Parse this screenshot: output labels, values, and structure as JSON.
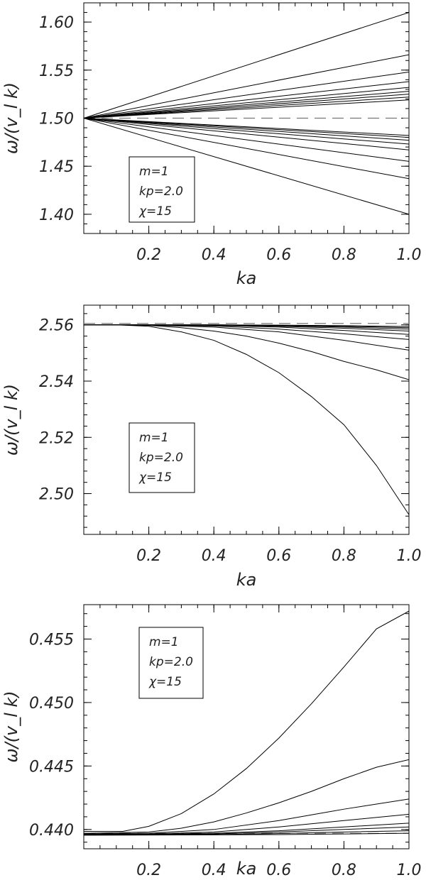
{
  "chart_data": [
    {
      "type": "line",
      "xlabel": "ka",
      "ylabel": "ω/(v_l k)",
      "xlim": [
        0.0,
        1.0
      ],
      "ylim": [
        1.38,
        1.62
      ],
      "x_ticks": [
        0.2,
        0.4,
        0.6,
        0.8,
        1.0
      ],
      "x_tick_labels": [
        "0.2",
        "0.4",
        "0.6",
        "0.8",
        "1.0"
      ],
      "y_ticks": [
        1.4,
        1.45,
        1.5,
        1.55,
        1.6
      ],
      "y_tick_labels": [
        "1.40",
        "1.45",
        "1.50",
        "1.55",
        "1.60"
      ],
      "grid": false,
      "legend_placement": "lower-left",
      "annotation_lines": [
        "m=1",
        "kp=2.0",
        "χ=15"
      ],
      "reference_line": {
        "y": 1.5,
        "style": "dashed"
      },
      "series": [
        {
          "x": [
            0.0,
            1.0
          ],
          "y": [
            1.5,
            1.61
          ]
        },
        {
          "x": [
            0.0,
            1.0
          ],
          "y": [
            1.5,
            1.566
          ]
        },
        {
          "x": [
            0.0,
            1.0
          ],
          "y": [
            1.5,
            1.548
          ]
        },
        {
          "x": [
            0.0,
            1.0
          ],
          "y": [
            1.5,
            1.538
          ]
        },
        {
          "x": [
            0.0,
            1.0
          ],
          "y": [
            1.5,
            1.532
          ]
        },
        {
          "x": [
            0.0,
            1.0
          ],
          "y": [
            1.5,
            1.528
          ]
        },
        {
          "x": [
            0.0,
            1.0
          ],
          "y": [
            1.5,
            1.525
          ]
        },
        {
          "x": [
            0.0,
            1.0
          ],
          "y": [
            1.5,
            1.522
          ]
        },
        {
          "x": [
            0.0,
            1.0
          ],
          "y": [
            1.5,
            1.519
          ]
        },
        {
          "x": [
            0.0,
            1.0
          ],
          "y": [
            1.5,
            1.482
          ]
        },
        {
          "x": [
            0.0,
            1.0
          ],
          "y": [
            1.5,
            1.48
          ]
        },
        {
          "x": [
            0.0,
            1.0
          ],
          "y": [
            1.5,
            1.477
          ]
        },
        {
          "x": [
            0.0,
            1.0
          ],
          "y": [
            1.5,
            1.473
          ]
        },
        {
          "x": [
            0.0,
            1.0
          ],
          "y": [
            1.5,
            1.467
          ]
        },
        {
          "x": [
            0.0,
            1.0
          ],
          "y": [
            1.5,
            1.455
          ]
        },
        {
          "x": [
            0.0,
            1.0
          ],
          "y": [
            1.5,
            1.437
          ]
        },
        {
          "x": [
            0.0,
            1.0
          ],
          "y": [
            1.5,
            1.4
          ]
        }
      ]
    },
    {
      "type": "line",
      "xlabel": "ka",
      "ylabel": "ω/(v_l k)",
      "xlim": [
        0.0,
        1.0
      ],
      "ylim": [
        2.4855,
        2.567
      ],
      "x_ticks": [
        0.2,
        0.4,
        0.6,
        0.8,
        1.0
      ],
      "x_tick_labels": [
        "0.2",
        "0.4",
        "0.6",
        "0.8",
        "1.0"
      ],
      "y_ticks": [
        2.5,
        2.52,
        2.54,
        2.56
      ],
      "y_tick_labels": [
        "2.50",
        "2.52",
        "2.54",
        "2.56"
      ],
      "grid": false,
      "legend_placement": "lower-left",
      "annotation_lines": [
        "m=1",
        "kp=2.0",
        "χ=15"
      ],
      "reference_line": {
        "y": 2.5605,
        "style": "dashed"
      },
      "series": [
        {
          "x": [
            0.0,
            0.1,
            0.2,
            0.3,
            0.4,
            0.5,
            0.6,
            0.7,
            0.8,
            0.9,
            1.0
          ],
          "y": [
            2.56,
            2.56,
            2.5595,
            2.5575,
            2.5545,
            2.5495,
            2.543,
            2.5345,
            2.5245,
            2.51,
            2.4925
          ]
        },
        {
          "x": [
            0.0,
            0.1,
            0.2,
            0.3,
            0.4,
            0.5,
            0.6,
            0.7,
            0.8,
            0.9,
            1.0
          ],
          "y": [
            2.56,
            2.56,
            2.5598,
            2.559,
            2.5578,
            2.556,
            2.5535,
            2.5505,
            2.547,
            2.544,
            2.5405
          ]
        },
        {
          "x": [
            0.0,
            0.2,
            0.4,
            0.6,
            0.8,
            1.0
          ],
          "y": [
            2.56,
            2.5599,
            2.5592,
            2.5575,
            2.5545,
            2.551
          ]
        },
        {
          "x": [
            0.0,
            0.2,
            0.4,
            0.6,
            0.8,
            1.0
          ],
          "y": [
            2.56,
            2.56,
            2.5596,
            2.5585,
            2.5568,
            2.5548
          ]
        },
        {
          "x": [
            0.0,
            0.2,
            0.4,
            0.6,
            0.8,
            1.0
          ],
          "y": [
            2.56,
            2.56,
            2.5598,
            2.5592,
            2.558,
            2.5566
          ]
        },
        {
          "x": [
            0.0,
            0.2,
            0.4,
            0.6,
            0.8,
            1.0
          ],
          "y": [
            2.56,
            2.56,
            2.5599,
            2.5595,
            2.5588,
            2.5578
          ]
        },
        {
          "x": [
            0.0,
            0.2,
            0.4,
            0.6,
            0.8,
            1.0
          ],
          "y": [
            2.56,
            2.56,
            2.56,
            2.5597,
            2.5592,
            2.5585
          ]
        },
        {
          "x": [
            0.0,
            0.2,
            0.4,
            0.6,
            0.8,
            1.0
          ],
          "y": [
            2.56,
            2.56,
            2.56,
            2.5598,
            2.5595,
            2.559
          ]
        },
        {
          "x": [
            0.0,
            0.2,
            0.4,
            0.6,
            0.8,
            1.0
          ],
          "y": [
            2.56,
            2.56,
            2.56,
            2.5599,
            2.5597,
            2.5594
          ]
        }
      ]
    },
    {
      "type": "line",
      "xlabel": "ka",
      "ylabel": "ω/(v_l k)",
      "xlim": [
        0.0,
        1.0
      ],
      "ylim": [
        0.43848,
        0.45771
      ],
      "x_ticks": [
        0.2,
        0.4,
        0.6,
        0.8,
        1.0
      ],
      "x_tick_labels": [
        "0.2",
        "0.4",
        "0.6",
        "0.8",
        "1.0"
      ],
      "y_ticks": [
        0.44,
        0.445,
        0.45,
        0.455
      ],
      "y_tick_labels": [
        "0.440",
        "0.445",
        "0.450",
        "0.455"
      ],
      "grid": false,
      "legend_placement": "upper-left",
      "annotation_lines": [
        "m=1",
        "kp=2.0",
        "χ=15"
      ],
      "reference_line": {
        "y": 0.4397,
        "style": "dashed"
      },
      "series": [
        {
          "x": [
            0.0,
            0.12,
            0.2,
            0.3,
            0.4,
            0.5,
            0.6,
            0.7,
            0.8,
            0.9,
            1.0
          ],
          "y": [
            0.43985,
            0.43985,
            0.44025,
            0.44125,
            0.4428,
            0.4448,
            0.4472,
            0.4499,
            0.4528,
            0.4558,
            0.4572
          ]
        },
        {
          "x": [
            0.0,
            0.2,
            0.3,
            0.4,
            0.5,
            0.6,
            0.7,
            0.8,
            0.9,
            1.0
          ],
          "y": [
            0.4397,
            0.4398,
            0.4401,
            0.4406,
            0.4413,
            0.4421,
            0.443,
            0.444,
            0.4449,
            0.4455
          ]
        },
        {
          "x": [
            0.0,
            0.2,
            0.4,
            0.6,
            0.8,
            1.0
          ],
          "y": [
            0.43965,
            0.4397,
            0.44,
            0.4407,
            0.4416,
            0.4424
          ]
        },
        {
          "x": [
            0.0,
            0.2,
            0.4,
            0.6,
            0.8,
            1.0
          ],
          "y": [
            0.43962,
            0.43965,
            0.4398,
            0.4402,
            0.4407,
            0.4412
          ]
        },
        {
          "x": [
            0.0,
            0.2,
            0.4,
            0.6,
            0.8,
            1.0
          ],
          "y": [
            0.4396,
            0.43962,
            0.4397,
            0.4399,
            0.4402,
            0.4405
          ]
        },
        {
          "x": [
            0.0,
            0.2,
            0.4,
            0.6,
            0.8,
            1.0
          ],
          "y": [
            0.43958,
            0.4396,
            0.43965,
            0.4398,
            0.44,
            0.4402
          ]
        },
        {
          "x": [
            0.0,
            0.2,
            0.4,
            0.6,
            0.8,
            1.0
          ],
          "y": [
            0.43957,
            0.43958,
            0.4396,
            0.43968,
            0.4398,
            0.4399
          ]
        },
        {
          "x": [
            0.0,
            0.2,
            0.4,
            0.6,
            0.8,
            1.0
          ],
          "y": [
            0.43955,
            0.43956,
            0.43958,
            0.4396,
            0.43965,
            0.4397
          ]
        }
      ]
    }
  ]
}
